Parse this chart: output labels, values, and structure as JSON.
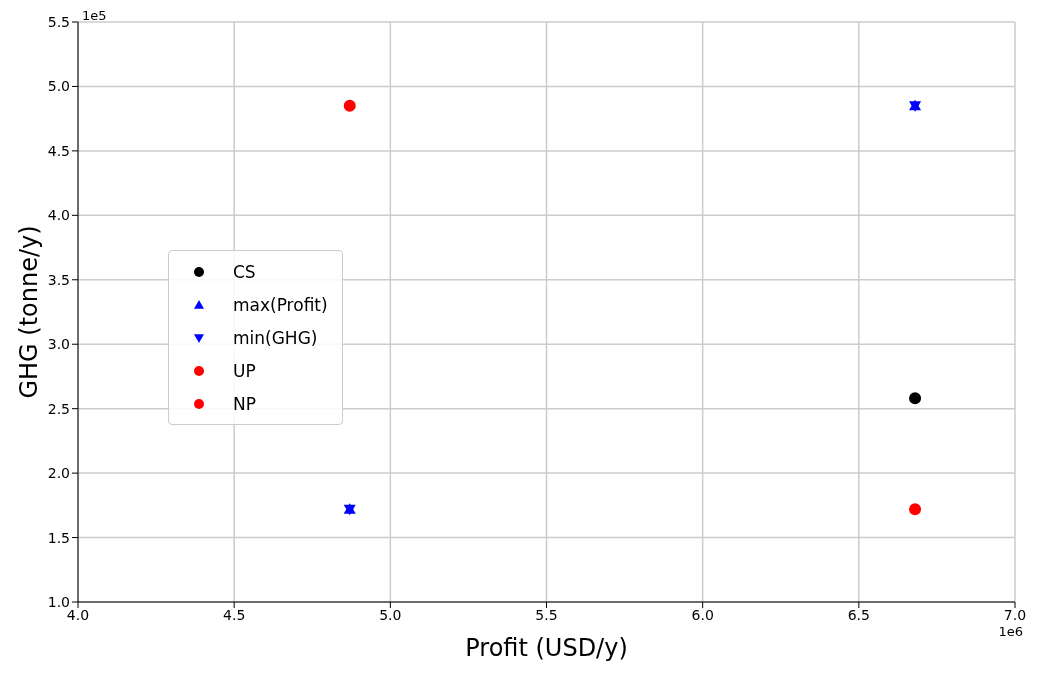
{
  "chart_data": {
    "type": "scatter",
    "xlabel": "Profit (USD/y)",
    "ylabel": "GHG (tonne/y)",
    "annotations": [
      "1e5",
      "1e6"
    ],
    "series": [
      {
        "name": "CS",
        "color": "#000000",
        "marker": "circle",
        "values": [
          null,
          2.58
        ]
      },
      {
        "name": "max(Profit)",
        "color": "#0000ff",
        "marker": "triangle",
        "values": [
          1.72,
          4.85
        ]
      },
      {
        "name": "min(GHG)",
        "color": "#0000ff",
        "marker": "triangle-down",
        "values": [
          1.72,
          4.85
        ]
      },
      {
        "name": "UP",
        "color": "#ff0000",
        "marker": "circle",
        "values": [
          4.85,
          null
        ]
      },
      {
        "name": "NP",
        "color": "#ff0000",
        "marker": "circle",
        "values": [
          null,
          1.72
        ]
      }
    ],
    "x": [
      4.87,
      6.68
    ],
    "xlim": [
      4,
      7
    ],
    "xticks": [
      {
        "value": 4,
        "label": "4.0"
      },
      4.5,
      {
        "value": 5,
        "label": "5.0"
      },
      5.5,
      {
        "value": 6,
        "label": "6.0"
      },
      6.5,
      {
        "value": 7,
        "label": "7.0"
      }
    ],
    "ylim": [
      1,
      5.5
    ],
    "yticks": [
      {
        "value": 1,
        "label": "1.0"
      },
      1.5,
      {
        "value": 2,
        "label": "2.0"
      },
      2.5,
      {
        "value": 3,
        "label": "3.0"
      },
      3.5,
      {
        "value": 4,
        "label": "4.0"
      },
      4.5,
      {
        "value": 5,
        "label": "5.0"
      },
      5.5
    ],
    "grid": true,
    "legend": "center left"
  }
}
